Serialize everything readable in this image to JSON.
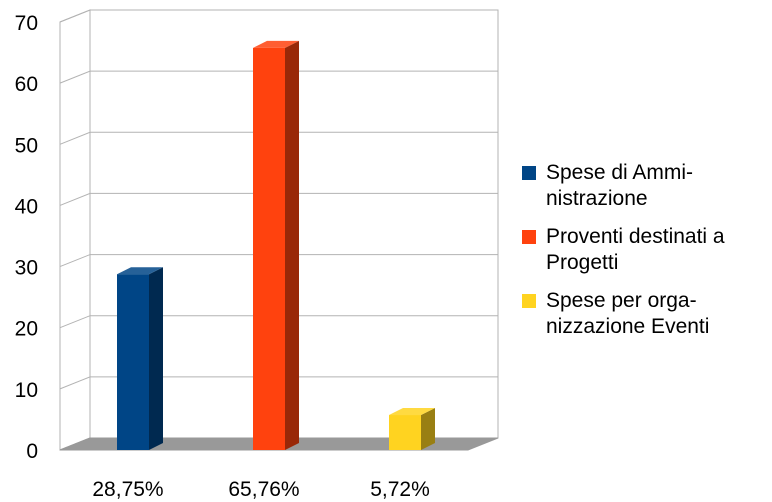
{
  "chart_data": {
    "type": "bar",
    "categories": [
      "28,75%",
      "65,76%",
      "5,72%"
    ],
    "values": [
      28.75,
      65.76,
      5.72
    ],
    "ylim": [
      0,
      70
    ],
    "yticks": [
      0,
      10,
      20,
      30,
      40,
      50,
      60,
      70
    ],
    "grid": true,
    "legend_position": "right",
    "legend": [
      {
        "label": "Spese di Ammi-\nnistrazione",
        "color": "#004586"
      },
      {
        "label": "Proventi destinati a\nProgetti",
        "color": "#ff420e"
      },
      {
        "label": "Spese per orga-\nnizzazione Eventi",
        "color": "#ffd320"
      }
    ]
  }
}
